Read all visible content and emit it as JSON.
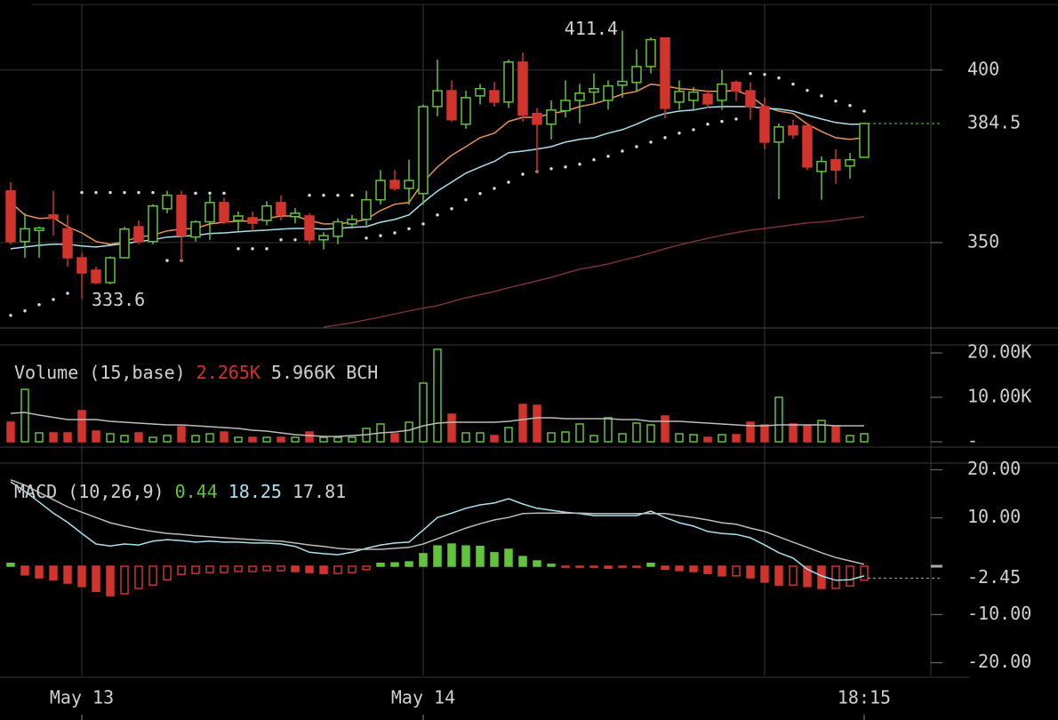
{
  "chart_data": [
    {
      "type": "candlestick",
      "categories": [
        null,
        null,
        null,
        null,
        null,
        "May 13",
        null,
        null,
        null,
        null,
        null,
        null,
        null,
        null,
        null,
        null,
        null,
        null,
        null,
        null,
        null,
        null,
        null,
        null,
        null,
        null,
        null,
        null,
        null,
        "May 14",
        null,
        null,
        null,
        null,
        null,
        null,
        null,
        null,
        null,
        null,
        null,
        null,
        null,
        null,
        null,
        null,
        null,
        null,
        null,
        null,
        null,
        null,
        null,
        null,
        null,
        null,
        null,
        null,
        null,
        null,
        "18:15"
      ],
      "open": [
        365,
        350.3,
        353.5,
        358,
        354,
        345.6,
        342,
        338.4,
        345.6,
        354.6,
        350.3,
        359.8,
        363.7,
        351.6,
        356,
        361.6,
        356.4,
        357.2,
        356.4,
        361.6,
        357.5,
        357.7,
        350.8,
        351.8,
        355.4,
        356.7,
        362.4,
        368,
        365.7,
        364.2,
        389.4,
        394,
        384.3,
        392.5,
        394,
        390.7,
        402.3,
        387.4,
        384.3,
        388.2,
        391.2,
        393.6,
        391.2,
        395.6,
        396.4,
        401,
        409.3,
        390.7,
        391.2,
        393,
        391.2,
        396.4,
        394,
        389.4,
        379.1,
        383.8,
        383.8,
        370.6,
        374,
        372.2,
        374.7
      ],
      "high": [
        367.5,
        358.5,
        354.6,
        365,
        358,
        347,
        343,
        346,
        354.6,
        356.4,
        361.1,
        365,
        365,
        356.4,
        363.7,
        363,
        359,
        359,
        362,
        363.7,
        360,
        358.5,
        353,
        357,
        358,
        365,
        371,
        371,
        374,
        390,
        403,
        397,
        394,
        396,
        396.5,
        403,
        405,
        389,
        391.2,
        397,
        396,
        399,
        397,
        411.4,
        406,
        409.5,
        409.3,
        397,
        395,
        394.2,
        400,
        397,
        396.4,
        392,
        384.5,
        385.6,
        384.8,
        375,
        377,
        376,
        384.8
      ],
      "low": [
        349.5,
        345.6,
        345.6,
        352,
        343,
        333.6,
        337.9,
        337.9,
        345.6,
        349.5,
        349.5,
        358.5,
        344.3,
        350.3,
        350.8,
        355.4,
        353.4,
        353.4,
        355,
        356.4,
        355.6,
        349.5,
        348,
        349.5,
        354,
        355,
        361,
        365,
        361,
        361,
        386.6,
        385,
        383,
        390,
        389.4,
        389,
        385,
        370,
        379.9,
        386.3,
        384.5,
        390,
        388.5,
        392,
        393.8,
        399,
        386,
        388.5,
        388.5,
        389,
        388.5,
        391,
        385.6,
        377,
        362.6,
        380,
        371,
        362.4,
        367,
        368.5,
        374.7
      ],
      "close": [
        350.3,
        354,
        354.2,
        357,
        345.6,
        341.2,
        338.4,
        345.6,
        353.9,
        350.3,
        360.6,
        363.7,
        352,
        356,
        361.6,
        356,
        357.7,
        355.6,
        360.6,
        358,
        358.5,
        350.8,
        352,
        356,
        356.7,
        362.4,
        368,
        365.7,
        368,
        389.4,
        394,
        385.6,
        392,
        394.6,
        390.7,
        402.3,
        386.9,
        384.3,
        388.4,
        391.2,
        393.3,
        394.6,
        395.4,
        396.7,
        401,
        408.8,
        388.9,
        393.8,
        393.6,
        390.2,
        395.9,
        394,
        389.4,
        379.1,
        383.5,
        381.2,
        371.9,
        373.5,
        371,
        374,
        384.5
      ],
      "up_color": "#62c33c",
      "down_color": "#d0342c",
      "series": [
        {
          "color": "#e8935a",
          "values": [
            361.6,
            358,
            357,
            357.2,
            354.6,
            352.8,
            350.3,
            349.5,
            350.3,
            351.6,
            352.1,
            353.4,
            353.9,
            354.1,
            355.4,
            355.9,
            356.2,
            356.2,
            357,
            357.7,
            357.7,
            356.4,
            355.4,
            355.4,
            355.9,
            356.7,
            359.3,
            361.1,
            361.6,
            367.5,
            371.9,
            375.3,
            377.8,
            380.4,
            381.7,
            385.1,
            386.3,
            386.3,
            387.4,
            388.1,
            389.4,
            390.2,
            391.5,
            393,
            393.8,
            395.9,
            395.4,
            394.6,
            394.3,
            393.8,
            393.8,
            394.1,
            392.5,
            389.4,
            388.1,
            387.4,
            384.3,
            382.2,
            380.4,
            379.9,
            380.4
          ]
        },
        {
          "color": "#a8e0f0",
          "values": [
            348.2,
            348.7,
            349.2,
            349.5,
            349.5,
            349,
            348.7,
            349.2,
            349.7,
            350.3,
            350.8,
            351.6,
            351.8,
            352.1,
            352.6,
            352.8,
            353.1,
            353.4,
            353.6,
            353.9,
            354.1,
            354.1,
            353.9,
            354.1,
            354.4,
            354.6,
            355.9,
            356.7,
            358,
            361.6,
            364.9,
            367.5,
            370.1,
            371.9,
            373.5,
            376,
            376.5,
            377.1,
            377.8,
            379.1,
            379.9,
            380.4,
            381.7,
            382.7,
            384.3,
            386.1,
            387.4,
            388.1,
            388.4,
            389.2,
            389.4,
            389.4,
            389.4,
            388.9,
            388.7,
            388.1,
            386.9,
            385.8,
            384.8,
            384.3,
            384.3
          ]
        },
        {
          "color": "#7a2f42",
          "values": [
            null,
            null,
            null,
            null,
            null,
            null,
            null,
            null,
            null,
            null,
            null,
            null,
            null,
            null,
            null,
            null,
            null,
            null,
            null,
            null,
            null,
            null,
            325.5,
            326.1,
            326.8,
            327.6,
            328.4,
            329.3,
            330.2,
            331,
            331.7,
            332.9,
            334,
            334.9,
            335.8,
            336.9,
            337.9,
            338.9,
            339.9,
            341.1,
            342.3,
            343,
            343.8,
            344.9,
            345.9,
            347,
            348.2,
            349.3,
            350.3,
            351.2,
            352.1,
            352.9,
            353.6,
            354.1,
            354.6,
            355.2,
            355.7,
            356,
            356.4,
            357,
            357.5
          ]
        },
        {
          "color": "#dddddd",
          "style": "dots",
          "values": [
            328.9,
            330.2,
            332,
            333.5,
            335.3,
            364.5,
            364.5,
            364.5,
            364.5,
            364.5,
            364.5,
            344.8,
            344.8,
            364.3,
            364.3,
            364.3,
            348.2,
            348.2,
            348.2,
            350.8,
            350.8,
            363.7,
            363.7,
            363.7,
            363.7,
            351.3,
            352,
            352.8,
            354,
            355.4,
            358,
            359.8,
            362.4,
            364.2,
            365.7,
            367.5,
            369.8,
            370.6,
            371.4,
            371.9,
            372.7,
            374,
            375,
            376.5,
            377.8,
            379.1,
            380.4,
            381.7,
            382.7,
            384.3,
            385.1,
            385.8,
            399,
            398.7,
            397.7,
            395.9,
            394.1,
            392.5,
            391,
            389.7,
            388.1
          ]
        }
      ],
      "ylim": [
        325.5,
        419
      ],
      "yticks": [
        350,
        400
      ],
      "grid": true,
      "last_value": 384.5,
      "high_label": 411.4,
      "low_label": 333.6
    },
    {
      "type": "bar",
      "title": "Volume (15,base)",
      "legend_items": [
        {
          "value": 2265,
          "label": "2.265K",
          "color": "#d0342c"
        },
        {
          "value": 5966,
          "label": "5.966K BCH",
          "color": "#d0d0d0"
        }
      ],
      "values": [
        4400,
        11800,
        2000,
        2000,
        2000,
        7000,
        2400,
        1800,
        1400,
        2000,
        1000,
        1400,
        3400,
        1400,
        1800,
        2200,
        1000,
        1000,
        1000,
        1000,
        1000,
        2200,
        1000,
        1000,
        1000,
        3000,
        4000,
        1800,
        4400,
        13200,
        20800,
        6200,
        2000,
        2000,
        1400,
        3200,
        8400,
        8200,
        2000,
        2200,
        4000,
        1400,
        5400,
        1800,
        4200,
        3800,
        5800,
        1800,
        1600,
        1000,
        1600,
        1600,
        4400,
        3800,
        10000,
        4000,
        3600,
        4800,
        3400,
        1400,
        1800
      ],
      "series": [
        {
          "color": "#bbbbbb",
          "values": [
            6400,
            6600,
            6000,
            5500,
            5000,
            5000,
            5000,
            4600,
            4400,
            4200,
            4000,
            3800,
            3800,
            3600,
            3400,
            3200,
            3000,
            2600,
            2400,
            2000,
            1600,
            1400,
            1200,
            1200,
            1400,
            1600,
            2000,
            2200,
            2600,
            3600,
            4200,
            4400,
            4400,
            4400,
            4400,
            4600,
            5000,
            5400,
            5400,
            5200,
            5200,
            5200,
            5200,
            5000,
            5000,
            4600,
            4600,
            4600,
            4400,
            4200,
            4000,
            3800,
            3600,
            3600,
            3800,
            3800,
            3800,
            3800,
            3600,
            3600,
            3600
          ]
        }
      ],
      "ylim": [
        -1000,
        21800
      ],
      "yticks": [
        {
          "value": 20000,
          "label": "20.00K"
        },
        {
          "value": 10000,
          "label": "10.00K"
        },
        {
          "value": 0,
          "label": "-"
        }
      ]
    },
    {
      "type": "macd",
      "title": "MACD (10,26,9)",
      "legend_items": [
        {
          "value": 0.44,
          "color": "#62c33c"
        },
        {
          "value": 18.25,
          "color": "#a8e0f0"
        },
        {
          "value": 17.81,
          "color": "#d0d0d0"
        }
      ],
      "histogram": [
        0.6,
        -1.8,
        -2.4,
        -2.8,
        -3.5,
        -4.2,
        -5.2,
        -6.1,
        -5.7,
        -4.6,
        -3.9,
        -2.8,
        -1.7,
        -1.5,
        -1.3,
        -1.3,
        -1.1,
        -1.1,
        -0.9,
        -0.9,
        -1.1,
        -1.3,
        -1.5,
        -1.5,
        -1.3,
        -0.7,
        0.6,
        0.7,
        0.9,
        2.6,
        4.2,
        4.6,
        4.2,
        4.1,
        2.8,
        3.5,
        2.0,
        1.1,
        0.4,
        -0.2,
        -0.2,
        -0.2,
        -0.4,
        -0.2,
        -0.2,
        0.6,
        -0.6,
        -0.9,
        -1.1,
        -1.5,
        -2.0,
        -2.0,
        -2.4,
        -3.3,
        -3.9,
        -3.9,
        -4.2,
        -4.6,
        -4.6,
        -4.1,
        -2.9
      ],
      "series": [
        {
          "color": "#a8e0f0",
          "values": [
            17.5,
            15.5,
            13.3,
            11,
            9.1,
            6.8,
            4.6,
            4.2,
            4.6,
            4.4,
            5.2,
            5.5,
            5.3,
            5.0,
            5.2,
            5.0,
            5.0,
            4.8,
            4.8,
            4.6,
            4.1,
            2.9,
            2.6,
            2.4,
            2.9,
            3.7,
            4.4,
            4.8,
            5.0,
            7.5,
            10.1,
            11.0,
            12.0,
            12.7,
            13.1,
            14.0,
            12.9,
            12.0,
            11.6,
            11.2,
            10.9,
            10.5,
            10.5,
            10.5,
            10.5,
            11.4,
            10.1,
            9.0,
            8.3,
            7.2,
            6.8,
            6.6,
            5.9,
            4.4,
            2.8,
            1.7,
            -0.6,
            -2.0,
            -2.9,
            -2.8,
            -2.0
          ]
        },
        {
          "color": "#bbbbbb",
          "values": [
            17.9,
            16.8,
            15.3,
            13.8,
            12.3,
            11.2,
            10.1,
            9.0,
            8.3,
            7.7,
            7.2,
            6.8,
            6.6,
            6.3,
            6.1,
            5.9,
            5.7,
            5.5,
            5.3,
            5.2,
            4.8,
            4.4,
            4.1,
            3.7,
            3.5,
            3.5,
            3.5,
            3.7,
            3.9,
            4.6,
            5.7,
            6.8,
            7.9,
            8.8,
            9.6,
            10.1,
            10.9,
            11.0,
            11.0,
            11.0,
            11.0,
            10.9,
            10.9,
            10.9,
            10.9,
            10.9,
            10.9,
            10.5,
            10.1,
            9.6,
            9.0,
            8.7,
            7.9,
            7.2,
            6.1,
            5.0,
            3.9,
            2.8,
            1.8,
            1.1,
            0.4
          ]
        }
      ],
      "ylim": [
        -22.65,
        21.18
      ],
      "yticks": [
        {
          "value": 20,
          "label": "20.00"
        },
        {
          "value": 10,
          "label": "10.00"
        },
        {
          "value": -10,
          "label": "-10.00"
        },
        {
          "value": -20,
          "label": "-20.00"
        }
      ],
      "last_value": -2.45
    }
  ]
}
